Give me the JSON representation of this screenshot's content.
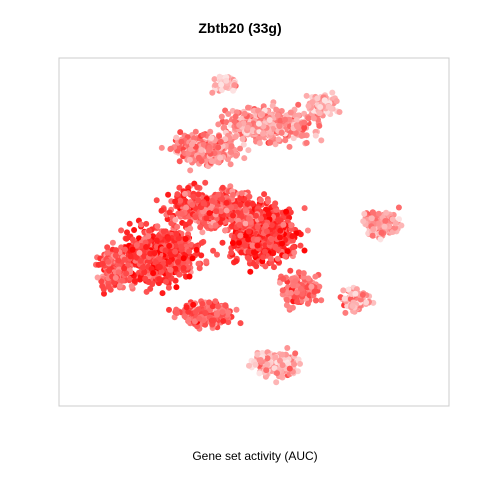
{
  "chart_data": {
    "type": "scatter",
    "title": "Zbtb20 (33g)",
    "xlabel": "Gene set activity (AUC)",
    "ylabel": "",
    "axes_visible": false,
    "grid": false,
    "legend": "none",
    "color_low": "#fde2e2",
    "color_high": "#ff0000",
    "box_color": "#cccccc"
  }
}
